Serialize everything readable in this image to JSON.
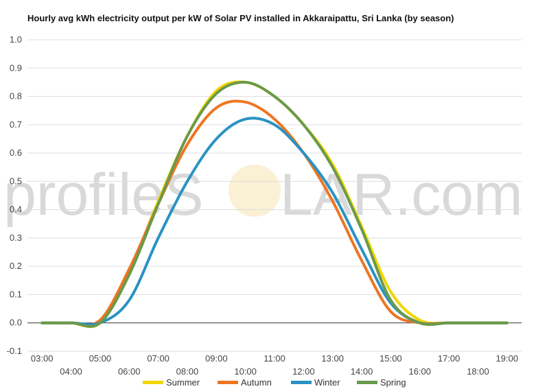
{
  "watermark": {
    "text_left": "profileS",
    "text_right": "LAR.com"
  },
  "chart_data": {
    "type": "line",
    "title": "Hourly avg kWh electricity output per kW of Solar PV installed in Akkaraipattu, Sri Lanka (by season)",
    "xlabel": "",
    "ylabel": "",
    "ylim": [
      -0.1,
      1.0
    ],
    "yticks": [
      "-0.1",
      "0.0",
      "0.1",
      "0.2",
      "0.3",
      "0.4",
      "0.5",
      "0.6",
      "0.7",
      "0.8",
      "0.9",
      "1.0"
    ],
    "x": [
      3,
      4,
      5,
      6,
      7,
      8,
      9,
      10,
      11,
      12,
      13,
      14,
      15,
      16,
      17,
      18,
      19
    ],
    "xticks_top": [
      "03:00",
      "05:00",
      "07:00",
      "09:00",
      "11:00",
      "13:00",
      "15:00",
      "17:00",
      "19:00"
    ],
    "xticks_bottom": [
      "04:00",
      "06:00",
      "08:00",
      "10:00",
      "12:00",
      "14:00",
      "16:00",
      "18:00"
    ],
    "grid": true,
    "legend_position": "bottom",
    "series": [
      {
        "name": "Summer",
        "color": "#f2d600",
        "values": [
          0,
          0,
          0,
          0.18,
          0.43,
          0.66,
          0.82,
          0.85,
          0.8,
          0.7,
          0.56,
          0.34,
          0.11,
          0.01,
          0,
          0,
          0
        ]
      },
      {
        "name": "Autumn",
        "color": "#ee7522",
        "values": [
          0,
          0,
          0.01,
          0.19,
          0.42,
          0.63,
          0.76,
          0.78,
          0.72,
          0.6,
          0.43,
          0.22,
          0.04,
          0,
          0,
          0,
          0
        ]
      },
      {
        "name": "Winter",
        "color": "#2a92c4",
        "values": [
          0,
          0,
          0,
          0.08,
          0.3,
          0.5,
          0.65,
          0.72,
          0.7,
          0.6,
          0.46,
          0.26,
          0.07,
          0,
          0,
          0,
          0
        ]
      },
      {
        "name": "Spring",
        "color": "#6a9a4a",
        "values": [
          0,
          0,
          0,
          0.17,
          0.42,
          0.66,
          0.81,
          0.85,
          0.8,
          0.7,
          0.55,
          0.33,
          0.08,
          0,
          0,
          0,
          0
        ]
      }
    ]
  }
}
